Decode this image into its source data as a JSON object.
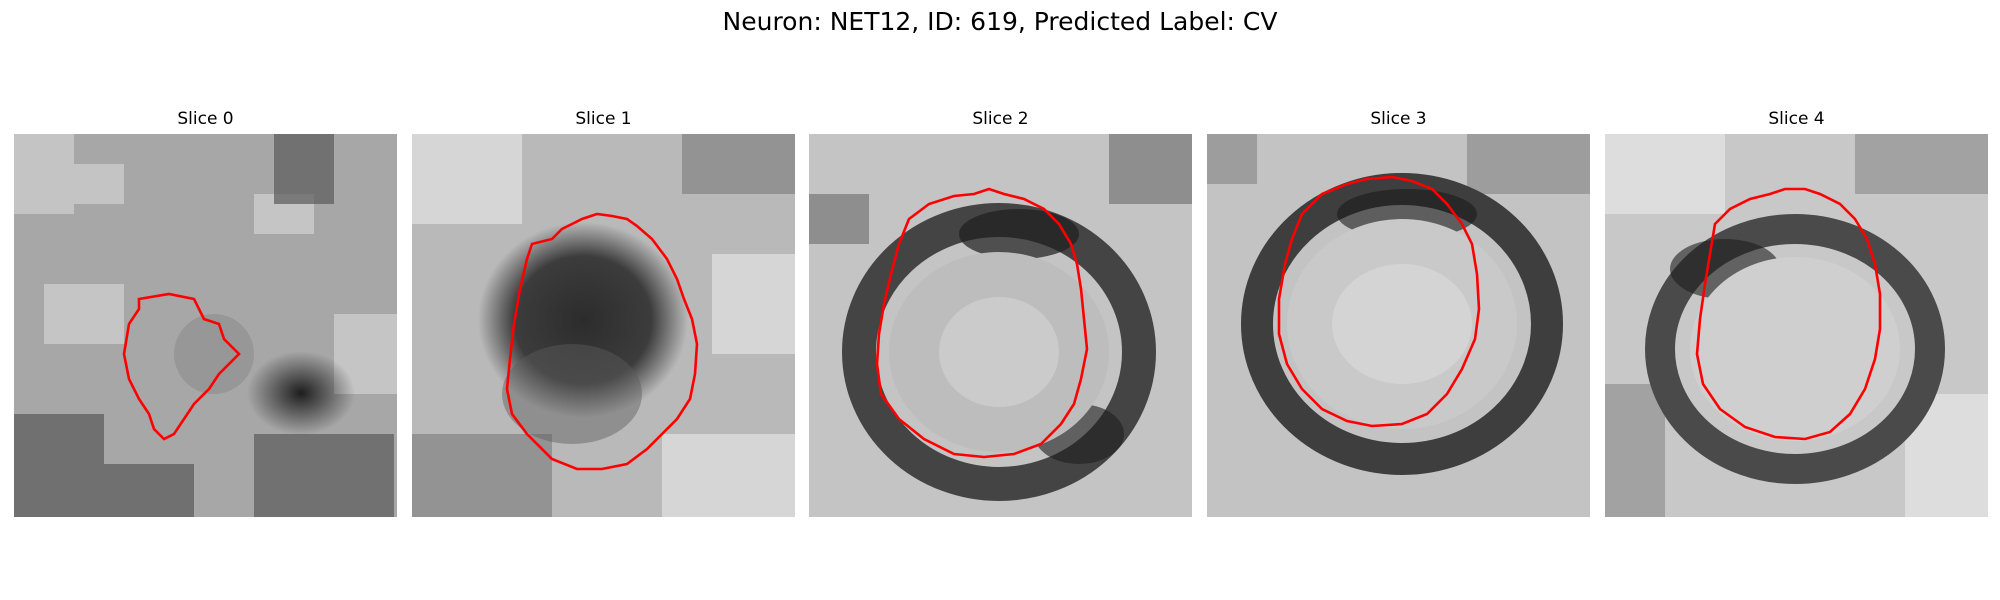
{
  "figure": {
    "title": "Neuron: NET12, ID: 619, Predicted Label: CV",
    "contour_color": "#ff0000"
  },
  "panels": [
    {
      "title": "Slice 0"
    },
    {
      "title": "Slice 1"
    },
    {
      "title": "Slice 2"
    },
    {
      "title": "Slice 3"
    },
    {
      "title": "Slice 4"
    }
  ]
}
